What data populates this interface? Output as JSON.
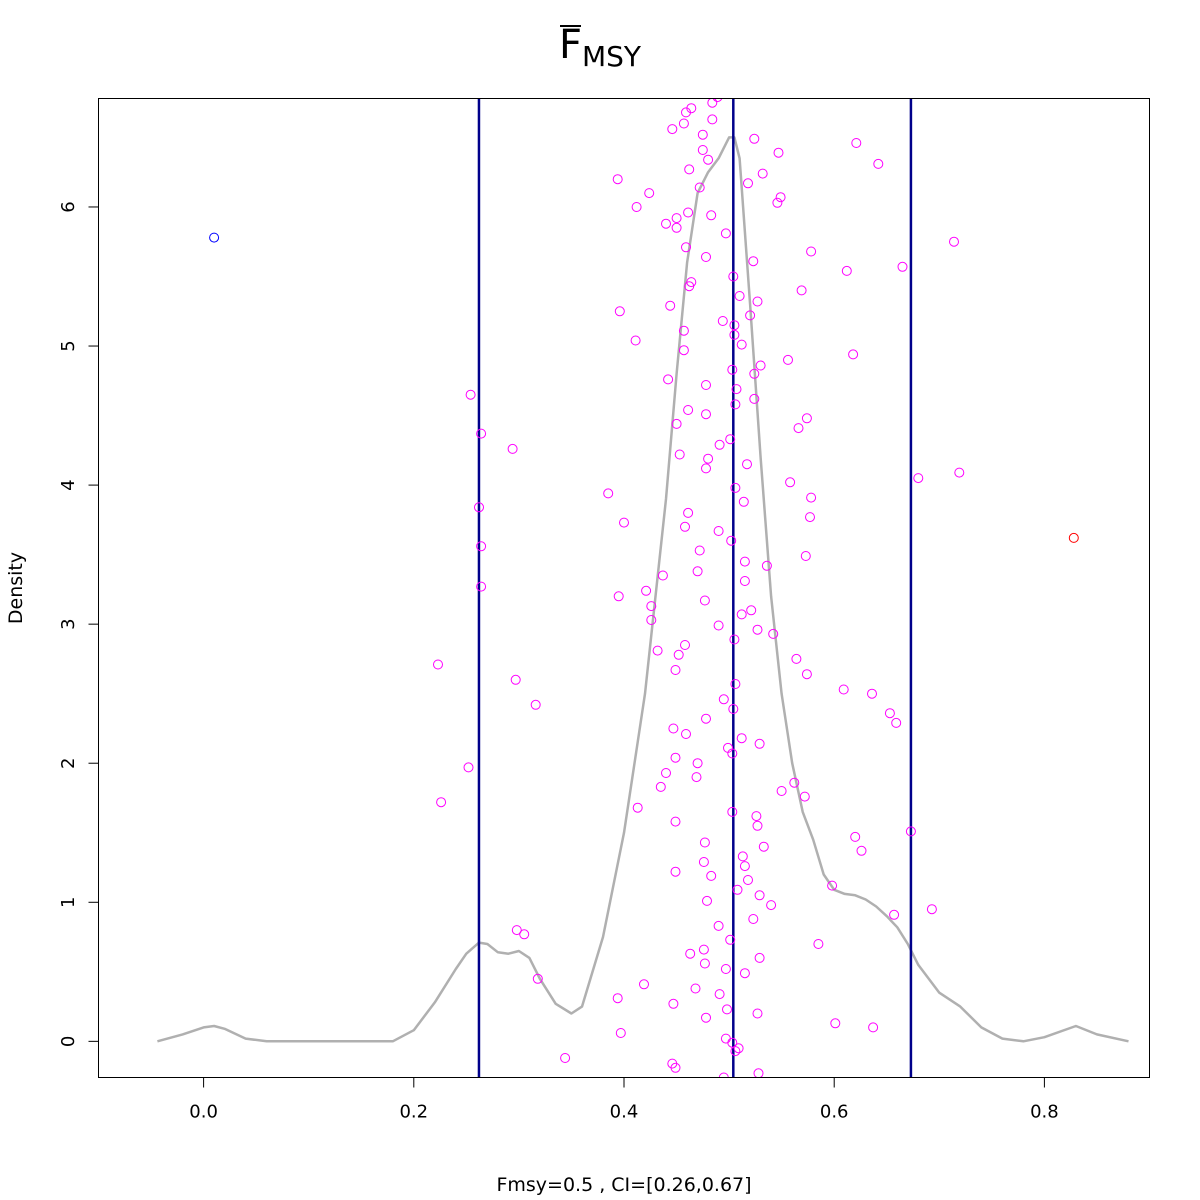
{
  "chart_data": {
    "type": "density",
    "title_base": "F",
    "title_sub": "MSY",
    "xlabel": "Fmsy=0.5 , CI=[0.26,0.67]",
    "ylabel": "Density",
    "xlim": [
      -0.1,
      0.9
    ],
    "ylim": [
      -0.26,
      6.78
    ],
    "x_ticks": [
      0.0,
      0.2,
      0.4,
      0.6,
      0.8
    ],
    "x_tick_labels": [
      "0.0",
      "0.2",
      "0.4",
      "0.6",
      "0.8"
    ],
    "y_ticks": [
      0,
      1,
      2,
      3,
      4,
      5,
      6
    ],
    "y_tick_labels": [
      "0",
      "1",
      "2",
      "3",
      "4",
      "5",
      "6"
    ],
    "grid": false,
    "vlines": [
      0.262,
      0.504,
      0.673
    ],
    "vline_color": "#00008b",
    "density_color": "#b0b0b0",
    "density_curve": {
      "x": [
        -0.044,
        -0.02,
        0.0,
        0.01,
        0.02,
        0.04,
        0.06,
        0.1,
        0.15,
        0.18,
        0.2,
        0.22,
        0.24,
        0.25,
        0.262,
        0.27,
        0.28,
        0.29,
        0.3,
        0.31,
        0.32,
        0.335,
        0.35,
        0.36,
        0.38,
        0.4,
        0.42,
        0.44,
        0.45,
        0.46,
        0.47,
        0.48,
        0.49,
        0.5,
        0.505,
        0.51,
        0.52,
        0.53,
        0.54,
        0.55,
        0.56,
        0.57,
        0.58,
        0.59,
        0.6,
        0.61,
        0.62,
        0.63,
        0.64,
        0.65,
        0.66,
        0.67,
        0.68,
        0.7,
        0.72,
        0.74,
        0.76,
        0.78,
        0.8,
        0.83,
        0.85,
        0.88
      ],
      "y": [
        0.0,
        0.05,
        0.1,
        0.11,
        0.09,
        0.02,
        0.0,
        0.0,
        0.0,
        0.0,
        0.08,
        0.28,
        0.52,
        0.63,
        0.71,
        0.7,
        0.64,
        0.63,
        0.65,
        0.6,
        0.45,
        0.27,
        0.2,
        0.25,
        0.75,
        1.5,
        2.5,
        3.9,
        4.8,
        5.6,
        6.1,
        6.25,
        6.35,
        6.5,
        6.5,
        6.35,
        5.3,
        4.2,
        3.2,
        2.5,
        2.0,
        1.65,
        1.45,
        1.2,
        1.09,
        1.06,
        1.05,
        1.02,
        0.97,
        0.9,
        0.82,
        0.7,
        0.55,
        0.35,
        0.25,
        0.1,
        0.02,
        0.0,
        0.03,
        0.11,
        0.05,
        0.0
      ]
    },
    "point_groups": [
      {
        "color": "#0000ff",
        "points": [
          [
            0.01,
            5.78
          ]
        ]
      },
      {
        "color": "#ff0000",
        "points": [
          [
            0.828,
            3.62
          ]
        ]
      },
      {
        "color": "#ff00ff",
        "points": [
          [
            0.254,
            4.65
          ],
          [
            0.264,
            4.37
          ],
          [
            0.262,
            3.84
          ],
          [
            0.264,
            3.56
          ],
          [
            0.264,
            3.27
          ],
          [
            0.223,
            2.71
          ],
          [
            0.252,
            1.97
          ],
          [
            0.226,
            1.72
          ],
          [
            0.294,
            4.26
          ],
          [
            0.297,
            2.6
          ],
          [
            0.316,
            2.42
          ],
          [
            0.298,
            0.8
          ],
          [
            0.305,
            0.77
          ],
          [
            0.318,
            0.45
          ],
          [
            0.344,
            -0.12
          ],
          [
            0.385,
            3.94
          ],
          [
            0.394,
            6.2
          ],
          [
            0.396,
            5.25
          ],
          [
            0.4,
            3.73
          ],
          [
            0.395,
            3.2
          ],
          [
            0.394,
            0.31
          ],
          [
            0.397,
            0.06
          ],
          [
            0.412,
            6.0
          ],
          [
            0.424,
            6.1
          ],
          [
            0.44,
            5.88
          ],
          [
            0.45,
            5.92
          ],
          [
            0.45,
            5.85
          ],
          [
            0.444,
            5.29
          ],
          [
            0.411,
            5.04
          ],
          [
            0.442,
            4.76
          ],
          [
            0.421,
            3.24
          ],
          [
            0.426,
            3.13
          ],
          [
            0.426,
            3.03
          ],
          [
            0.437,
            3.35
          ],
          [
            0.432,
            2.81
          ],
          [
            0.413,
            1.68
          ],
          [
            0.419,
            0.41
          ],
          [
            0.44,
            1.93
          ],
          [
            0.435,
            1.83
          ],
          [
            0.446,
            6.56
          ],
          [
            0.45,
            4.44
          ],
          [
            0.453,
            4.22
          ],
          [
            0.452,
            2.78
          ],
          [
            0.449,
            2.67
          ],
          [
            0.447,
            2.25
          ],
          [
            0.449,
            2.04
          ],
          [
            0.449,
            1.58
          ],
          [
            0.449,
            1.22
          ],
          [
            0.447,
            0.27
          ],
          [
            0.446,
            -0.16
          ],
          [
            0.449,
            -0.19
          ],
          [
            0.457,
            6.6
          ],
          [
            0.459,
            6.68
          ],
          [
            0.464,
            6.71
          ],
          [
            0.462,
            6.27
          ],
          [
            0.461,
            5.96
          ],
          [
            0.459,
            5.71
          ],
          [
            0.462,
            5.43
          ],
          [
            0.464,
            5.46
          ],
          [
            0.457,
            5.11
          ],
          [
            0.457,
            4.97
          ],
          [
            0.461,
            4.54
          ],
          [
            0.458,
            3.7
          ],
          [
            0.461,
            3.8
          ],
          [
            0.458,
            2.85
          ],
          [
            0.459,
            2.21
          ],
          [
            0.463,
            0.63
          ],
          [
            0.468,
            0.38
          ],
          [
            0.475,
            6.52
          ],
          [
            0.475,
            6.41
          ],
          [
            0.48,
            6.34
          ],
          [
            0.472,
            6.14
          ],
          [
            0.478,
            5.64
          ],
          [
            0.478,
            4.72
          ],
          [
            0.478,
            4.51
          ],
          [
            0.48,
            4.19
          ],
          [
            0.478,
            4.12
          ],
          [
            0.472,
            3.53
          ],
          [
            0.47,
            3.38
          ],
          [
            0.477,
            3.17
          ],
          [
            0.478,
            2.32
          ],
          [
            0.47,
            2.0
          ],
          [
            0.469,
            1.9
          ],
          [
            0.477,
            1.43
          ],
          [
            0.476,
            1.29
          ],
          [
            0.479,
            1.01
          ],
          [
            0.476,
            0.66
          ],
          [
            0.477,
            0.56
          ],
          [
            0.478,
            0.17
          ],
          [
            0.484,
            6.75
          ],
          [
            0.489,
            6.79
          ],
          [
            0.484,
            6.63
          ],
          [
            0.483,
            5.94
          ],
          [
            0.491,
            4.29
          ],
          [
            0.49,
            3.67
          ],
          [
            0.49,
            2.99
          ],
          [
            0.483,
            1.19
          ],
          [
            0.49,
            0.83
          ],
          [
            0.491,
            0.34
          ],
          [
            0.494,
            5.18
          ],
          [
            0.497,
            5.81
          ],
          [
            0.495,
            2.46
          ],
          [
            0.499,
            2.11
          ],
          [
            0.497,
            0.52
          ],
          [
            0.498,
            0.23
          ],
          [
            0.497,
            0.02
          ],
          [
            0.495,
            -0.26
          ],
          [
            0.504,
            5.5
          ],
          [
            0.505,
            5.15
          ],
          [
            0.505,
            5.08
          ],
          [
            0.503,
            4.83
          ],
          [
            0.507,
            4.69
          ],
          [
            0.506,
            4.58
          ],
          [
            0.501,
            4.33
          ],
          [
            0.506,
            3.98
          ],
          [
            0.502,
            3.6
          ],
          [
            0.506,
            2.57
          ],
          [
            0.504,
            2.39
          ],
          [
            0.503,
            2.07
          ],
          [
            0.503,
            1.65
          ],
          [
            0.501,
            0.73
          ],
          [
            0.503,
            -0.01
          ],
          [
            0.506,
            -0.07
          ],
          [
            0.51,
            5.36
          ],
          [
            0.512,
            5.01
          ],
          [
            0.514,
            3.88
          ],
          [
            0.515,
            3.45
          ],
          [
            0.515,
            3.31
          ],
          [
            0.512,
            3.07
          ],
          [
            0.505,
            2.89
          ],
          [
            0.512,
            2.18
          ],
          [
            0.513,
            1.33
          ],
          [
            0.515,
            1.26
          ],
          [
            0.508,
            1.09
          ],
          [
            0.515,
            0.49
          ],
          [
            0.509,
            -0.05
          ],
          [
            0.517,
            4.15
          ],
          [
            0.518,
            6.17
          ],
          [
            0.52,
            5.22
          ],
          [
            0.523,
            5.61
          ],
          [
            0.524,
            4.8
          ],
          [
            0.524,
            4.62
          ],
          [
            0.521,
            3.1
          ],
          [
            0.518,
            1.16
          ],
          [
            0.523,
            0.88
          ],
          [
            0.524,
            6.49
          ],
          [
            0.527,
            5.32
          ],
          [
            0.527,
            2.96
          ],
          [
            0.529,
            2.14
          ],
          [
            0.526,
            1.62
          ],
          [
            0.527,
            1.55
          ],
          [
            0.529,
            1.05
          ],
          [
            0.529,
            0.6
          ],
          [
            0.527,
            0.2
          ],
          [
            0.528,
            -0.23
          ],
          [
            0.532,
            6.24
          ],
          [
            0.53,
            4.86
          ],
          [
            0.533,
            1.4
          ],
          [
            0.536,
            3.42
          ],
          [
            0.54,
            0.98
          ],
          [
            0.542,
            2.93
          ],
          [
            0.546,
            6.03
          ],
          [
            0.549,
            6.07
          ],
          [
            0.547,
            6.39
          ],
          [
            0.55,
            1.8
          ],
          [
            0.556,
            4.9
          ],
          [
            0.558,
            4.02
          ],
          [
            0.562,
            1.86
          ],
          [
            0.564,
            2.75
          ],
          [
            0.566,
            4.41
          ],
          [
            0.569,
            5.4
          ],
          [
            0.572,
            1.76
          ],
          [
            0.573,
            3.49
          ],
          [
            0.574,
            2.64
          ],
          [
            0.574,
            4.48
          ],
          [
            0.578,
            5.68
          ],
          [
            0.578,
            3.91
          ],
          [
            0.577,
            3.77
          ],
          [
            0.585,
            0.7
          ],
          [
            0.598,
            1.12
          ],
          [
            0.601,
            0.13
          ],
          [
            0.609,
            2.53
          ],
          [
            0.612,
            5.54
          ],
          [
            0.618,
            4.94
          ],
          [
            0.621,
            6.46
          ],
          [
            0.62,
            1.47
          ],
          [
            0.626,
            1.37
          ],
          [
            0.636,
            2.5
          ],
          [
            0.637,
            0.1
          ],
          [
            0.642,
            6.31
          ],
          [
            0.653,
            2.36
          ],
          [
            0.657,
            0.91
          ],
          [
            0.659,
            2.29
          ],
          [
            0.665,
            5.57
          ],
          [
            0.673,
            1.51
          ],
          [
            0.68,
            4.05
          ],
          [
            0.693,
            0.95
          ],
          [
            0.714,
            5.75
          ],
          [
            0.719,
            4.09
          ]
        ]
      }
    ]
  }
}
